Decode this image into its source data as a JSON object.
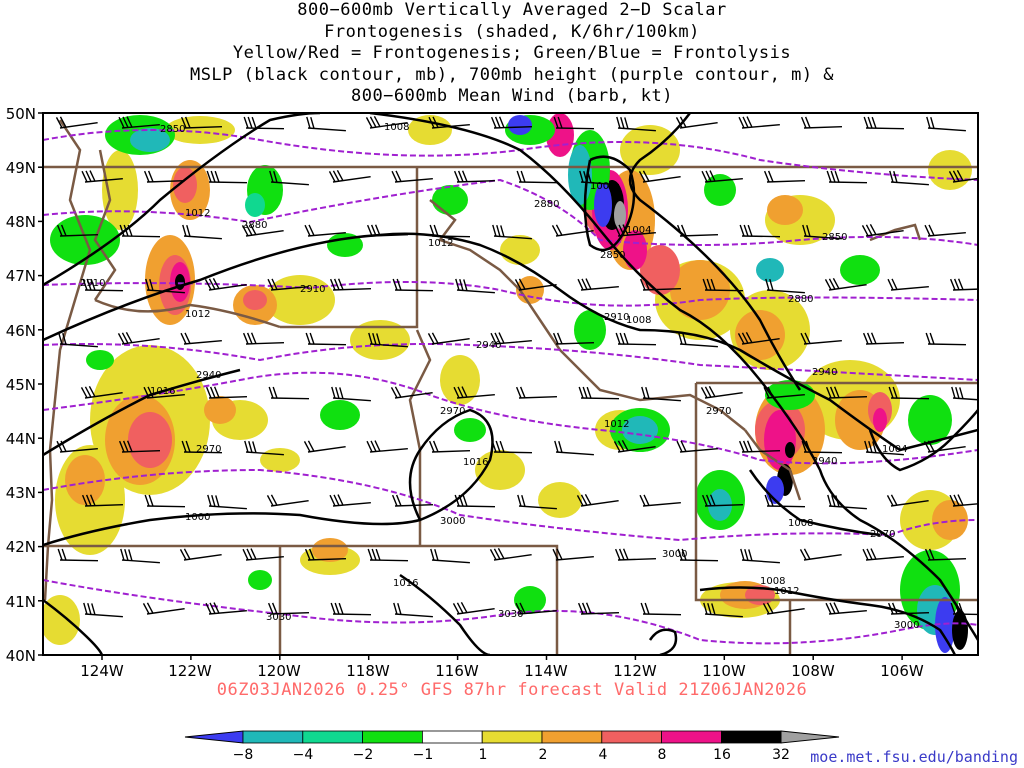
{
  "title": {
    "lines": [
      "800−600mb Vertically Averaged 2−D Scalar",
      "Frontogenesis (shaded, K/6hr/100km)",
      "Yellow/Red = Frontogenesis;  Green/Blue = Frontolysis",
      "MSLP (black contour, mb), 700mb height (purple contour, m) &",
      "800−600mb Mean Wind (barb, kt)"
    ]
  },
  "axes": {
    "lon_labels": [
      "124W",
      "122W",
      "120W",
      "118W",
      "116W",
      "114W",
      "112W",
      "110W",
      "108W",
      "106W"
    ],
    "lat_labels": [
      "50N",
      "49N",
      "48N",
      "47N",
      "46N",
      "45N",
      "44N",
      "43N",
      "42N",
      "41N",
      "40N"
    ]
  },
  "mslp_labels": [
    "1008",
    "1012",
    "1016",
    "1000",
    "1004",
    "1012",
    "1008",
    "1016",
    "1012",
    "1012",
    "1008",
    "1004",
    "1016",
    "1012",
    "1000",
    "1008"
  ],
  "height_labels": [
    "2850",
    "2880",
    "2910",
    "2940",
    "2970",
    "2880",
    "2850",
    "2910",
    "2940",
    "2970",
    "3000",
    "3000",
    "3030",
    "3030",
    "3000",
    "2970",
    "2910",
    "2940",
    "2880",
    "2850",
    "2940",
    "2970"
  ],
  "colorbar": {
    "labels": [
      "−8",
      "−4",
      "−2",
      "−1",
      "1",
      "2",
      "4",
      "8",
      "16",
      "32"
    ],
    "colors": [
      "#3c3cf0",
      "#20b8b8",
      "#10d890",
      "#10e010",
      "#ffffff",
      "#e6dc32",
      "#f0a030",
      "#f06060",
      "#ee1288",
      "#000000",
      "#a0a0a0"
    ]
  },
  "colors": {
    "mslp": "#000000",
    "height": "#a020d0",
    "borders": "#7a5a44",
    "barbs": "#000000"
  },
  "footer": "06Z03JAN2026 0.25° GFS 87hr forecast Valid 21Z06JAN2026",
  "credit": "moe.met.fsu.edu/banding"
}
